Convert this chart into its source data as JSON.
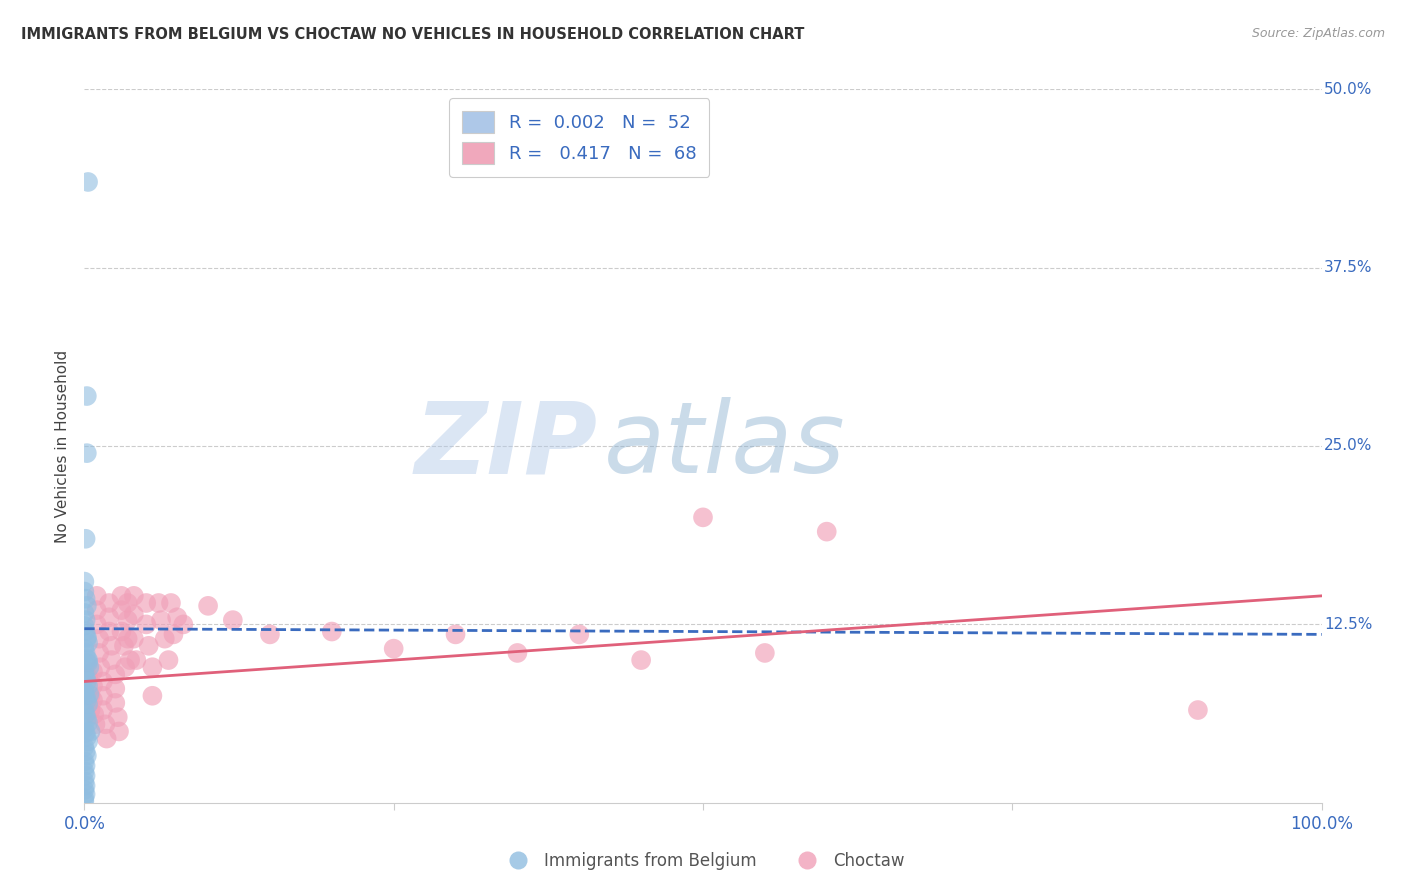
{
  "title": "IMMIGRANTS FROM BELGIUM VS CHOCTAW NO VEHICLES IN HOUSEHOLD CORRELATION CHART",
  "source": "Source: ZipAtlas.com",
  "ylabel": "No Vehicles in Household",
  "xlim": [
    0.0,
    1.0
  ],
  "ylim": [
    0.0,
    0.5
  ],
  "ytick_right_labels": [
    "50.0%",
    "37.5%",
    "25.0%",
    "12.5%",
    ""
  ],
  "ytick_right_values": [
    0.5,
    0.375,
    0.25,
    0.125,
    0.0
  ],
  "blue_color": "#90bde0",
  "pink_color": "#f0a0b8",
  "blue_line_color": "#3a6bbf",
  "pink_line_color": "#e0607a",
  "watermark_zip": "ZIP",
  "watermark_atlas": "atlas",
  "blue_scatter": [
    [
      0.003,
      0.435
    ],
    [
      0.002,
      0.285
    ],
    [
      0.002,
      0.245
    ],
    [
      0.001,
      0.185
    ],
    [
      0.0,
      0.155
    ],
    [
      0.0,
      0.148
    ],
    [
      0.001,
      0.143
    ],
    [
      0.002,
      0.138
    ],
    [
      0.0,
      0.133
    ],
    [
      0.001,
      0.128
    ],
    [
      0.0,
      0.124
    ],
    [
      0.001,
      0.12
    ],
    [
      0.002,
      0.116
    ],
    [
      0.003,
      0.112
    ],
    [
      0.0,
      0.108
    ],
    [
      0.001,
      0.105
    ],
    [
      0.002,
      0.101
    ],
    [
      0.003,
      0.098
    ],
    [
      0.004,
      0.095
    ],
    [
      0.0,
      0.091
    ],
    [
      0.001,
      0.088
    ],
    [
      0.002,
      0.085
    ],
    [
      0.003,
      0.082
    ],
    [
      0.0,
      0.078
    ],
    [
      0.001,
      0.075
    ],
    [
      0.002,
      0.072
    ],
    [
      0.003,
      0.069
    ],
    [
      0.0,
      0.065
    ],
    [
      0.001,
      0.062
    ],
    [
      0.002,
      0.059
    ],
    [
      0.003,
      0.056
    ],
    [
      0.0,
      0.052
    ],
    [
      0.001,
      0.049
    ],
    [
      0.002,
      0.046
    ],
    [
      0.003,
      0.043
    ],
    [
      0.0,
      0.039
    ],
    [
      0.001,
      0.036
    ],
    [
      0.002,
      0.033
    ],
    [
      0.0,
      0.029
    ],
    [
      0.001,
      0.026
    ],
    [
      0.0,
      0.022
    ],
    [
      0.001,
      0.019
    ],
    [
      0.0,
      0.015
    ],
    [
      0.001,
      0.012
    ],
    [
      0.0,
      0.009
    ],
    [
      0.001,
      0.006
    ],
    [
      0.0,
      0.003
    ],
    [
      0.0,
      0.001
    ],
    [
      0.002,
      0.115
    ],
    [
      0.003,
      0.1
    ],
    [
      0.004,
      0.076
    ],
    [
      0.005,
      0.05
    ]
  ],
  "pink_scatter": [
    [
      0.002,
      0.098
    ],
    [
      0.003,
      0.088
    ],
    [
      0.005,
      0.075
    ],
    [
      0.005,
      0.065
    ],
    [
      0.007,
      0.092
    ],
    [
      0.007,
      0.082
    ],
    [
      0.007,
      0.072
    ],
    [
      0.008,
      0.062
    ],
    [
      0.009,
      0.055
    ],
    [
      0.01,
      0.145
    ],
    [
      0.01,
      0.135
    ],
    [
      0.01,
      0.125
    ],
    [
      0.012,
      0.115
    ],
    [
      0.012,
      0.105
    ],
    [
      0.013,
      0.095
    ],
    [
      0.015,
      0.085
    ],
    [
      0.015,
      0.075
    ],
    [
      0.015,
      0.065
    ],
    [
      0.017,
      0.055
    ],
    [
      0.018,
      0.045
    ],
    [
      0.02,
      0.14
    ],
    [
      0.02,
      0.13
    ],
    [
      0.02,
      0.12
    ],
    [
      0.022,
      0.11
    ],
    [
      0.022,
      0.1
    ],
    [
      0.025,
      0.09
    ],
    [
      0.025,
      0.08
    ],
    [
      0.025,
      0.07
    ],
    [
      0.027,
      0.06
    ],
    [
      0.028,
      0.05
    ],
    [
      0.03,
      0.145
    ],
    [
      0.03,
      0.135
    ],
    [
      0.03,
      0.12
    ],
    [
      0.032,
      0.11
    ],
    [
      0.033,
      0.095
    ],
    [
      0.035,
      0.14
    ],
    [
      0.035,
      0.128
    ],
    [
      0.035,
      0.115
    ],
    [
      0.037,
      0.1
    ],
    [
      0.04,
      0.145
    ],
    [
      0.04,
      0.132
    ],
    [
      0.04,
      0.115
    ],
    [
      0.042,
      0.1
    ],
    [
      0.05,
      0.14
    ],
    [
      0.05,
      0.125
    ],
    [
      0.052,
      0.11
    ],
    [
      0.055,
      0.095
    ],
    [
      0.055,
      0.075
    ],
    [
      0.06,
      0.14
    ],
    [
      0.062,
      0.128
    ],
    [
      0.065,
      0.115
    ],
    [
      0.068,
      0.1
    ],
    [
      0.07,
      0.14
    ],
    [
      0.072,
      0.118
    ],
    [
      0.075,
      0.13
    ],
    [
      0.08,
      0.125
    ],
    [
      0.1,
      0.138
    ],
    [
      0.12,
      0.128
    ],
    [
      0.15,
      0.118
    ],
    [
      0.2,
      0.12
    ],
    [
      0.25,
      0.108
    ],
    [
      0.3,
      0.118
    ],
    [
      0.35,
      0.105
    ],
    [
      0.4,
      0.118
    ],
    [
      0.45,
      0.1
    ],
    [
      0.5,
      0.2
    ],
    [
      0.6,
      0.19
    ],
    [
      0.9,
      0.065
    ],
    [
      0.55,
      0.105
    ]
  ],
  "blue_line_x": [
    0.0,
    1.0
  ],
  "blue_line_y": [
    0.122,
    0.118
  ],
  "pink_line_x": [
    0.0,
    1.0
  ],
  "pink_line_y": [
    0.085,
    0.145
  ]
}
